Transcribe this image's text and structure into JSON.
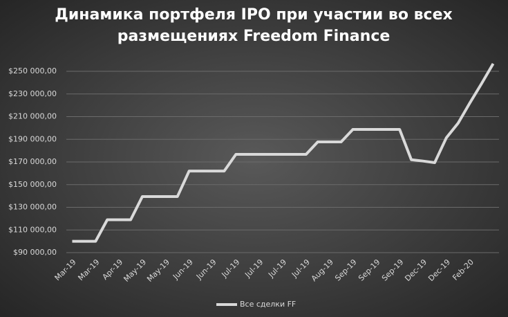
{
  "chart_data": {
    "type": "line",
    "title": [
      "Динамика портфеля IPO при участии во всех",
      "размещениях Freedom Finance"
    ],
    "categories": [
      "Mar-19",
      null,
      "Mar-19",
      null,
      "Apr-19",
      null,
      "May-19",
      null,
      "May-19",
      null,
      "Jun-19",
      null,
      "Jun-19",
      null,
      "Jul-19",
      null,
      "Jul-19",
      null,
      "Jul-19",
      null,
      "Jul-19",
      null,
      "Aug-19",
      null,
      "Sep-19",
      null,
      "Sep-19",
      null,
      "Sep-19",
      null,
      "Dec-19",
      null,
      "Dec-19",
      null,
      "Feb-20",
      null,
      null
    ],
    "series": [
      {
        "name": "Все сделки FF",
        "color": "#d9d9d9",
        "values": [
          100000,
          100000,
          100000,
          119000,
          119000,
          119000,
          139500,
          139500,
          139500,
          139500,
          162000,
          162000,
          162000,
          162000,
          176700,
          176700,
          176700,
          176700,
          176700,
          176700,
          176700,
          187700,
          187700,
          187700,
          198700,
          198700,
          198700,
          198700,
          198700,
          172000,
          170800,
          169400,
          191400,
          204200,
          222000,
          239000,
          256700
        ]
      }
    ],
    "ylim": [
      90000,
      250000
    ],
    "yticks": [
      {
        "value": 90000,
        "label": "$90 000,00"
      },
      {
        "value": 110000,
        "label": "$110 000,00"
      },
      {
        "value": 130000,
        "label": "$130 000,00"
      },
      {
        "value": 150000,
        "label": "$150 000,00"
      },
      {
        "value": 170000,
        "label": "$170 000,00"
      },
      {
        "value": 190000,
        "label": "$190 000,00"
      },
      {
        "value": 210000,
        "label": "$210 000,00"
      },
      {
        "value": 230000,
        "label": "$230 000,00"
      },
      {
        "value": 250000,
        "label": "$250 000,00"
      }
    ],
    "grid": true,
    "legend": "bottom"
  }
}
